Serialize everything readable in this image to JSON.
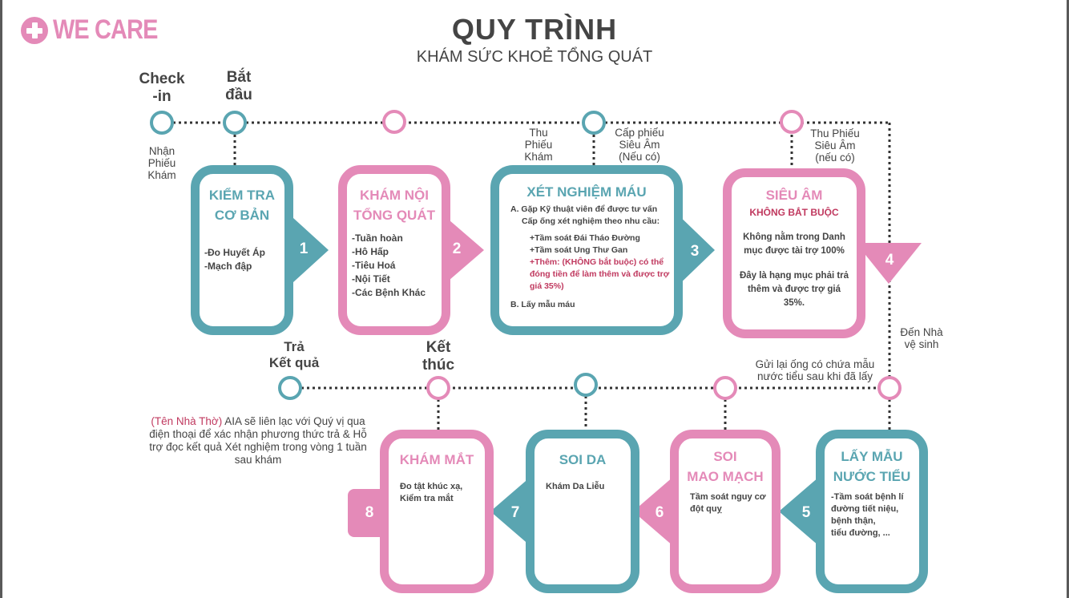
{
  "brand": {
    "name": "WE CARE"
  },
  "title": "QUY TRÌNH",
  "subtitle": "KHÁM SỨC KHOẺ TỔNG QUÁT",
  "labels": {
    "checkin": "Check\n-in",
    "start": "Bắt\nđầu",
    "receive_form": "Nhận\nPhiếu\nKhám",
    "collect_form": "Thu\nPhiếu\nKhám",
    "ultrasound_form": "Cấp phiếu\nSiêu Âm\n(Nếu có)",
    "collect_ultrasound": "Thu Phiếu\nSiêu Âm\n(nếu có)",
    "to_restroom": "Đến Nhà\nvệ sinh",
    "return_sample": "Gửi lại ống có chứa mẫu\nnước tiểu sau khi đã lấy",
    "results": "Trả\nKết quả",
    "end": "Kết\nthúc"
  },
  "note": {
    "church": "(Tên Nhà Thờ)",
    "text": " AIA sẽ liên lạc với Quý vị qua điện thoại để xác nhận phương thức trả & Hỗ trợ đọc kết quả Xét nghiệm trong vòng 1 tuần sau khám"
  },
  "steps": {
    "s1": {
      "num": "1",
      "title": "KIỂM TRA\nCƠ BẢN",
      "lines": [
        "-Đo Huyết Áp",
        "-Mạch đập"
      ]
    },
    "s2": {
      "num": "2",
      "title": "KHÁM NỘI\nTỔNG QUÁT",
      "lines": [
        "-Tuần hoàn",
        "-Hô Hấp",
        "-Tiêu Hoá",
        "-Nội Tiết",
        "-Các Bệnh Khác"
      ]
    },
    "s3": {
      "num": "3",
      "title": "XÉT NGHIỆM MÁU",
      "a_line1": "A. Gặp Kỹ thuật viên để được tư vấn",
      "a_line2": "Cấp ống xét nghiệm theo nhu cầu:",
      "test1": "+Tầm soát Đái Tháo Đường",
      "test2": "+Tầm soát Ung Thư Gan",
      "extra": "+Thêm:  (KHÔNG bắt buộc) có thể đóng tiền để làm thêm và được trợ giá 35%)",
      "b_line": "B. Lấy mẫu máu"
    },
    "s4": {
      "num": "4",
      "title": "SIÊU ÂM",
      "optional": "KHÔNG BẮT BUỘC",
      "text1": "Không nằm trong Danh mục được tài trợ 100%",
      "text2": "Đây là hạng mục phải trả thêm và được trợ giá 35%."
    },
    "s5": {
      "num": "5",
      "title": "LẤY MẪU\nNƯỚC TIỂU",
      "lines": [
        "-Tầm soát bệnh lí",
        "đường tiết niệu,",
        " bệnh thận,",
        "tiểu đường, ..."
      ]
    },
    "s6": {
      "num": "6",
      "title": "SOI\nMAO MẠCH",
      "lines": [
        "Tầm soát nguy cơ",
        "đột quỵ"
      ]
    },
    "s7": {
      "num": "7",
      "title": "SOI DA",
      "lines": [
        "Khám Da Liễu"
      ]
    },
    "s8": {
      "num": "8",
      "title": "KHÁM MẮT",
      "lines": [
        "Đo tật khúc xạ,",
        "Kiểm tra mắt"
      ]
    }
  },
  "colors": {
    "teal": "#5aa5b1",
    "pink": "#e48ab8",
    "highlight": "#c0395f",
    "text": "#444444"
  }
}
